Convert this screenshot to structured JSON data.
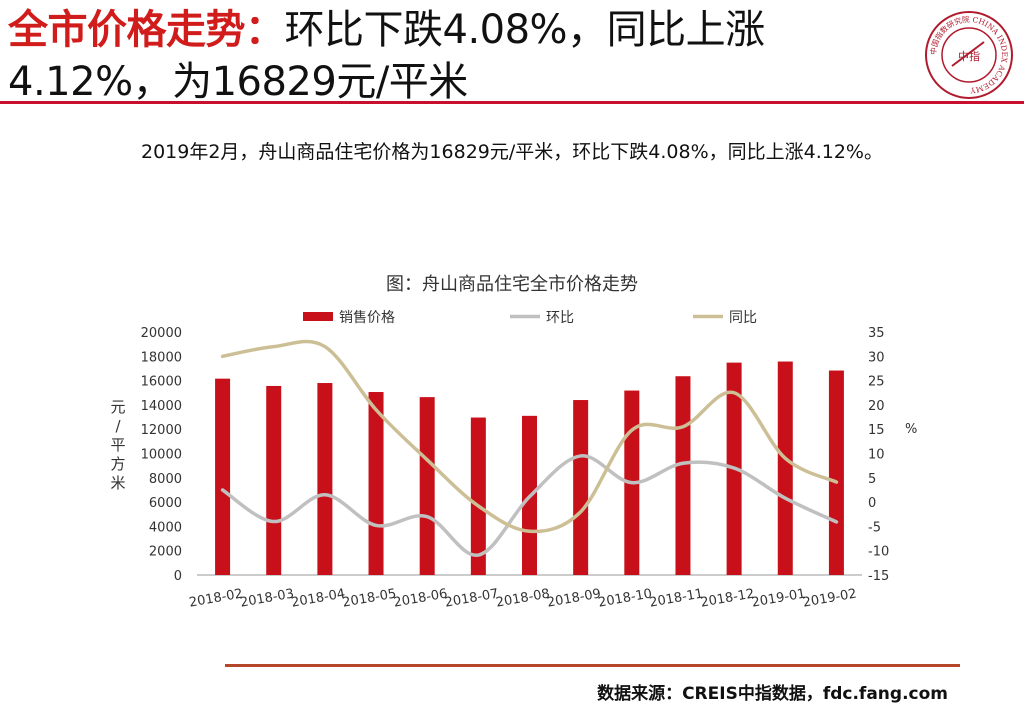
{
  "header": {
    "title_highlight": "全市价格走势：",
    "title_rest": "环比下跌4.08%，同比上涨4.12%，为16829元/平米",
    "logo": {
      "ring_text": "中国指数研究院 CHINA INDEX ACADEMY",
      "inner_text": "中指"
    }
  },
  "summary": "2019年2月，舟山商品住宅价格为16829元/平米，环比下跌4.08%，同比上涨4.12%。",
  "chart_title": "图：舟山商品住宅全市价格走势",
  "chart_data": {
    "type": "bar",
    "categories": [
      "2018-02",
      "2018-03",
      "2018-04",
      "2018-05",
      "2018-06",
      "2018-07",
      "2018-08",
      "2018-09",
      "2018-10",
      "2018-11",
      "2018-12",
      "2019-01",
      "2019-02"
    ],
    "series": [
      {
        "name": "销售价格",
        "type": "bar",
        "axis": "left",
        "color": "#c8101a",
        "values": [
          16160,
          15560,
          15800,
          15060,
          14640,
          12960,
          13100,
          14400,
          15180,
          16360,
          17480,
          17570,
          16829
        ]
      },
      {
        "name": "环比",
        "type": "line",
        "axis": "right",
        "color": "#c0c0c0",
        "values": [
          2.5,
          -4.0,
          1.5,
          -4.8,
          -3.0,
          -10.9,
          1.1,
          9.5,
          4.0,
          8.0,
          7.0,
          0.8,
          -4.08
        ]
      },
      {
        "name": "同比",
        "type": "line",
        "axis": "right",
        "color": "#cdbf95",
        "values": [
          30.0,
          32.0,
          32.0,
          19.0,
          8.7,
          -0.8,
          -6.0,
          -2.0,
          14.8,
          15.5,
          22.5,
          9.0,
          4.12
        ]
      }
    ],
    "y_left": {
      "label": "元/平方米",
      "min": 0,
      "max": 20000,
      "step": 2000
    },
    "y_right": {
      "label": "%",
      "min": -15,
      "max": 35,
      "step": 5
    },
    "legend_position": "top",
    "grid": false
  },
  "source": "数据来源：CREIS中指数据，fdc.fang.com"
}
